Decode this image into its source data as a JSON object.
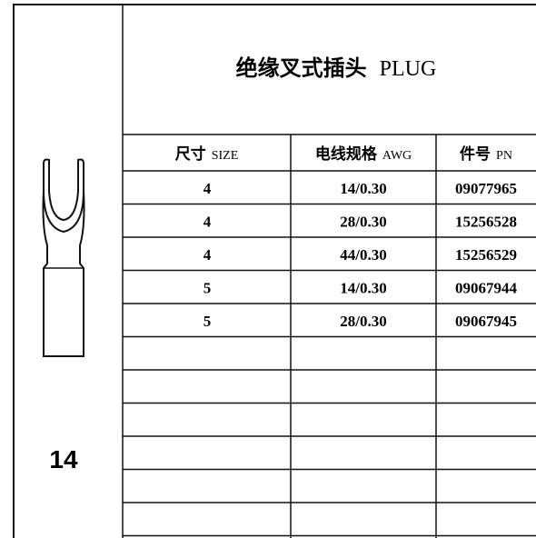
{
  "title": {
    "zh": "绝缘叉式插头",
    "en": "PLUG"
  },
  "part_number": "14",
  "table": {
    "columns": [
      {
        "zh": "尺寸",
        "en": "SIZE"
      },
      {
        "zh": "电线规格",
        "en": "AWG"
      },
      {
        "zh": "件号",
        "en": "PN"
      }
    ],
    "rows": [
      [
        "4",
        "14/0.30",
        "09077965"
      ],
      [
        "4",
        "28/0.30",
        "15256528"
      ],
      [
        "4",
        "44/0.30",
        "15256529"
      ],
      [
        "5",
        "14/0.30",
        "09067944"
      ],
      [
        "5",
        "28/0.30",
        "09067945"
      ]
    ]
  }
}
